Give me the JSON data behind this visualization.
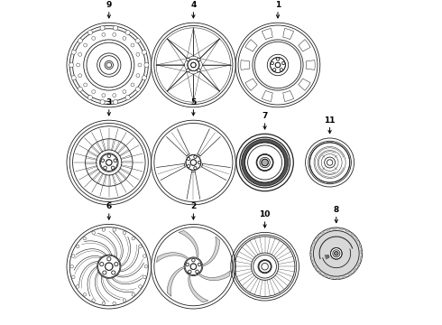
{
  "background": "#ffffff",
  "lc": "#222222",
  "lw": 0.6,
  "positions": {
    "9": [
      0.155,
      0.8,
      0.13
    ],
    "4": [
      0.415,
      0.8,
      0.13
    ],
    "1": [
      0.675,
      0.8,
      0.13
    ],
    "3": [
      0.155,
      0.5,
      0.13
    ],
    "5": [
      0.415,
      0.5,
      0.13
    ],
    "7": [
      0.635,
      0.5,
      0.088
    ],
    "11": [
      0.835,
      0.5,
      0.075
    ],
    "6": [
      0.155,
      0.18,
      0.13
    ],
    "2": [
      0.415,
      0.18,
      0.13
    ],
    "10": [
      0.635,
      0.18,
      0.105
    ],
    "8": [
      0.855,
      0.22,
      0.08
    ]
  }
}
